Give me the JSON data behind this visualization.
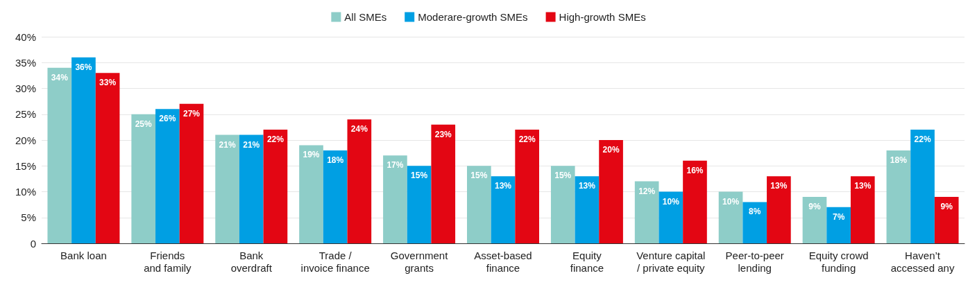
{
  "chart_data": {
    "type": "bar",
    "categories": [
      "Bank loan",
      "Friends\nand family",
      "Bank\noverdraft",
      "Trade /\ninvoice finance",
      "Government\ngrants",
      "Asset-based\nfinance",
      "Equity\nfinance",
      "Venture capital\n/ private equity",
      "Peer-to-peer\nlending",
      "Equity crowd\nfunding",
      "Haven’t\naccessed any"
    ],
    "series": [
      {
        "name": "All SMEs",
        "color": "#8ecdc8",
        "values": [
          34,
          25,
          21,
          19,
          17,
          15,
          15,
          12,
          10,
          9,
          18
        ],
        "value_labels": [
          "34%",
          "25%",
          "21%",
          "19%",
          "17%",
          "15%",
          "15%",
          "12%",
          "10%",
          "9%",
          "18%"
        ]
      },
      {
        "name": "Moderare-growth SMEs",
        "color": "#009fe3",
        "values": [
          36,
          26,
          21,
          18,
          15,
          13,
          13,
          10,
          8,
          7,
          22
        ],
        "value_labels": [
          "36%",
          "26%",
          "21%",
          "18%",
          "15%",
          "13%",
          "13%",
          "10%",
          "8%",
          "7%",
          "22%"
        ]
      },
      {
        "name": "High-growth SMEs",
        "color": "#e30613",
        "values": [
          33,
          27,
          22,
          24,
          23,
          22,
          20,
          16,
          13,
          13,
          9
        ],
        "value_labels": [
          "33%",
          "27%",
          "22%",
          "24%",
          "23%",
          "22%",
          "20%",
          "16%",
          "13%",
          "13%",
          "9%"
        ]
      }
    ],
    "ylim": [
      0,
      40
    ],
    "yticks": [
      {
        "value": 0,
        "label": "0"
      },
      {
        "value": 5,
        "label": "5%"
      },
      {
        "value": 10,
        "label": "10%"
      },
      {
        "value": 15,
        "label": "15%"
      },
      {
        "value": 20,
        "label": "20%"
      },
      {
        "value": 25,
        "label": "25%"
      },
      {
        "value": 30,
        "label": "30%"
      },
      {
        "value": 35,
        "label": "35%"
      },
      {
        "value": 40,
        "label": "40%"
      }
    ],
    "grid": "y",
    "legend": "top"
  }
}
